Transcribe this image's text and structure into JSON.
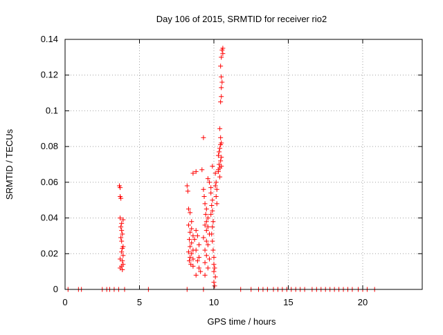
{
  "chart_data": {
    "type": "scatter",
    "title": "Day 106 of 2015, SRMTID for receiver rio2",
    "xlabel": "GPS time / hours",
    "ylabel": "SRMTID / TECUs",
    "xlim": [
      0,
      24
    ],
    "ylim": [
      0,
      0.14
    ],
    "x_ticks": [
      0,
      5,
      10,
      15,
      20
    ],
    "y_ticks": [
      0,
      0.02,
      0.04,
      0.06,
      0.08,
      0.1,
      0.12,
      0.14
    ],
    "x_tick_labels": [
      "0",
      "5",
      "10",
      "15",
      "20"
    ],
    "y_tick_labels": [
      "0",
      "0.02",
      "0.04",
      "0.06",
      "0.08",
      "0.1",
      "0.12",
      "0.14"
    ],
    "grid": true,
    "legend": "none",
    "marker": "plus",
    "marker_color": "#ff0000",
    "series": [
      {
        "points": [
          [
            0.2,
            0
          ],
          [
            0.9,
            0
          ],
          [
            1.1,
            0
          ],
          [
            2.5,
            0
          ],
          [
            2.8,
            0
          ],
          [
            3.0,
            0
          ],
          [
            3.3,
            0
          ],
          [
            3.6,
            0
          ],
          [
            4.0,
            0
          ],
          [
            5.6,
            0
          ],
          [
            8.2,
            0
          ],
          [
            9.3,
            0
          ],
          [
            11.8,
            0
          ],
          [
            12.5,
            0
          ],
          [
            13.0,
            0
          ],
          [
            13.3,
            0
          ],
          [
            13.6,
            0
          ],
          [
            14.0,
            0
          ],
          [
            14.3,
            0
          ],
          [
            14.6,
            0
          ],
          [
            14.9,
            0
          ],
          [
            15.2,
            0
          ],
          [
            15.5,
            0
          ],
          [
            15.8,
            0
          ],
          [
            16.1,
            0
          ],
          [
            16.6,
            0
          ],
          [
            16.9,
            0
          ],
          [
            17.2,
            0
          ],
          [
            17.5,
            0
          ],
          [
            17.8,
            0
          ],
          [
            18.1,
            0
          ],
          [
            18.4,
            0
          ],
          [
            18.7,
            0
          ],
          [
            19.0,
            0
          ],
          [
            19.3,
            0
          ],
          [
            19.7,
            0
          ],
          [
            20.0,
            0
          ],
          [
            20.3,
            0
          ],
          [
            20.8,
            0
          ],
          [
            3.65,
            0.058
          ],
          [
            3.7,
            0.057
          ],
          [
            3.7,
            0.052
          ],
          [
            3.75,
            0.051
          ],
          [
            3.7,
            0.04
          ],
          [
            3.9,
            0.039
          ],
          [
            3.8,
            0.037
          ],
          [
            3.75,
            0.035
          ],
          [
            3.8,
            0.033
          ],
          [
            3.85,
            0.031
          ],
          [
            3.75,
            0.029
          ],
          [
            3.8,
            0.027
          ],
          [
            3.9,
            0.024
          ],
          [
            3.85,
            0.023
          ],
          [
            3.8,
            0.021
          ],
          [
            3.9,
            0.019
          ],
          [
            3.7,
            0.017
          ],
          [
            3.85,
            0.016
          ],
          [
            3.9,
            0.014
          ],
          [
            3.8,
            0.013
          ],
          [
            3.7,
            0.012
          ],
          [
            3.85,
            0.011
          ],
          [
            8.2,
            0.058
          ],
          [
            8.25,
            0.055
          ],
          [
            8.6,
            0.065
          ],
          [
            8.8,
            0.066
          ],
          [
            8.3,
            0.045
          ],
          [
            8.4,
            0.043
          ],
          [
            8.5,
            0.038
          ],
          [
            8.3,
            0.036
          ],
          [
            8.5,
            0.034
          ],
          [
            8.4,
            0.032
          ],
          [
            8.6,
            0.03
          ],
          [
            8.35,
            0.028
          ],
          [
            8.5,
            0.026
          ],
          [
            8.4,
            0.024
          ],
          [
            8.6,
            0.022
          ],
          [
            8.3,
            0.021
          ],
          [
            8.5,
            0.02
          ],
          [
            8.4,
            0.018
          ],
          [
            8.6,
            0.017
          ],
          [
            8.35,
            0.016
          ],
          [
            8.45,
            0.014
          ],
          [
            8.6,
            0.013
          ],
          [
            8.8,
            0.033
          ],
          [
            8.9,
            0.03
          ],
          [
            8.7,
            0.028
          ],
          [
            9.0,
            0.025
          ],
          [
            8.8,
            0.022
          ],
          [
            9.0,
            0.018
          ],
          [
            8.9,
            0.016
          ],
          [
            9.0,
            0.012
          ],
          [
            9.1,
            0.01
          ],
          [
            8.8,
            0.008
          ],
          [
            9.2,
            0.067
          ],
          [
            9.3,
            0.085
          ],
          [
            9.3,
            0.056
          ],
          [
            9.35,
            0.052
          ],
          [
            9.4,
            0.048
          ],
          [
            9.5,
            0.045
          ],
          [
            9.45,
            0.042
          ],
          [
            9.6,
            0.04
          ],
          [
            9.5,
            0.038
          ],
          [
            9.4,
            0.036
          ],
          [
            9.6,
            0.035
          ],
          [
            9.5,
            0.033
          ],
          [
            9.7,
            0.031
          ],
          [
            9.3,
            0.029
          ],
          [
            9.5,
            0.027
          ],
          [
            9.6,
            0.025
          ],
          [
            9.4,
            0.022
          ],
          [
            9.5,
            0.019
          ],
          [
            9.7,
            0.017
          ],
          [
            9.4,
            0.015
          ],
          [
            9.6,
            0.012
          ],
          [
            9.4,
            0.008
          ],
          [
            9.6,
            0.062
          ],
          [
            9.7,
            0.06
          ],
          [
            9.8,
            0.057
          ],
          [
            9.8,
            0.054
          ],
          [
            9.9,
            0.05
          ],
          [
            9.85,
            0.047
          ],
          [
            9.9,
            0.044
          ],
          [
            9.8,
            0.042
          ],
          [
            9.95,
            0.038
          ],
          [
            9.9,
            0.035
          ],
          [
            9.85,
            0.031
          ],
          [
            9.9,
            0.027
          ],
          [
            9.95,
            0.022
          ],
          [
            10.0,
            0.018
          ],
          [
            10.0,
            0.014
          ],
          [
            10.05,
            0.012
          ],
          [
            10.0,
            0.01
          ],
          [
            10.1,
            0.007
          ],
          [
            10.0,
            0.004
          ],
          [
            10.05,
            0.002
          ],
          [
            9.9,
            0.069
          ],
          [
            10.1,
            0.065
          ],
          [
            10.15,
            0.06
          ],
          [
            10.1,
            0.058
          ],
          [
            10.2,
            0.056
          ],
          [
            10.15,
            0.052
          ],
          [
            10.2,
            0.048
          ],
          [
            10.3,
            0.067
          ],
          [
            10.35,
            0.07
          ],
          [
            10.4,
            0.068
          ],
          [
            10.3,
            0.075
          ],
          [
            10.4,
            0.079
          ],
          [
            10.45,
            0.081
          ],
          [
            10.5,
            0.082
          ],
          [
            10.35,
            0.077
          ],
          [
            10.45,
            0.085
          ],
          [
            10.4,
            0.09
          ],
          [
            10.5,
            0.074
          ],
          [
            10.45,
            0.072
          ],
          [
            10.3,
            0.066
          ],
          [
            10.5,
            0.069
          ],
          [
            10.4,
            0.063
          ],
          [
            10.45,
            0.105
          ],
          [
            10.5,
            0.108
          ],
          [
            10.5,
            0.113
          ],
          [
            10.55,
            0.116
          ],
          [
            10.5,
            0.119
          ],
          [
            10.45,
            0.125
          ],
          [
            10.5,
            0.13
          ],
          [
            10.6,
            0.132
          ],
          [
            10.55,
            0.134
          ],
          [
            10.6,
            0.135
          ]
        ]
      }
    ]
  }
}
